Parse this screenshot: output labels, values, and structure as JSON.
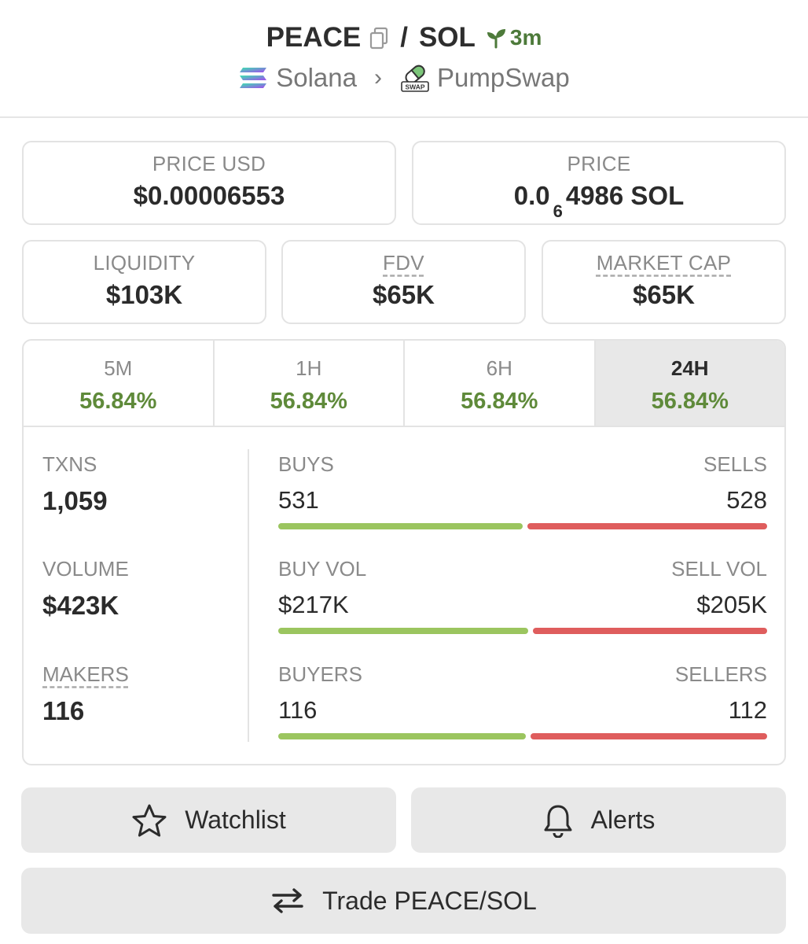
{
  "header": {
    "base_token": "PEACE",
    "separator": "/",
    "quote_token": "SOL",
    "age": "3m",
    "chain": "Solana",
    "dex": "PumpSwap",
    "dex_logo_text": "SWAP"
  },
  "prices": {
    "price_usd_label": "PRICE USD",
    "price_usd": "$0.00006553",
    "price_label": "PRICE",
    "price_prefix": "0.0",
    "price_zeros": "6",
    "price_suffix": "4986 SOL"
  },
  "metrics": {
    "liquidity_label": "LIQUIDITY",
    "liquidity": "$103K",
    "fdv_label": "FDV",
    "fdv": "$65K",
    "market_cap_label": "MARKET CAP",
    "market_cap": "$65K"
  },
  "tabs": [
    {
      "label": "5M",
      "change": "56.84%"
    },
    {
      "label": "1H",
      "change": "56.84%"
    },
    {
      "label": "6H",
      "change": "56.84%"
    },
    {
      "label": "24H",
      "change": "56.84%"
    }
  ],
  "stats": {
    "txns_label": "TXNS",
    "txns": "1,059",
    "volume_label": "VOLUME",
    "volume": "$423K",
    "makers_label": "MAKERS",
    "makers": "116",
    "buys_label": "BUYS",
    "buys": "531",
    "sells_label": "SELLS",
    "sells": "528",
    "buy_vol_label": "BUY VOL",
    "buy_vol": "$217K",
    "sell_vol_label": "SELL VOL",
    "sell_vol": "$205K",
    "buyers_label": "BUYERS",
    "buyers": "116",
    "sellers_label": "SELLERS",
    "sellers": "112"
  },
  "buttons": {
    "watchlist": "Watchlist",
    "alerts": "Alerts",
    "trade": "Trade PEACE/SOL"
  },
  "colors": {
    "positive": "#5f8a3a",
    "buy_bar": "#9bc55f",
    "sell_bar": "#df5d5d",
    "age": "#4d7a3a"
  },
  "icons": [
    "copy-icon",
    "seedling-icon",
    "solana-icon",
    "chevron-right-icon",
    "pumpswap-icon",
    "star-icon",
    "bell-icon",
    "swap-arrows-icon"
  ]
}
